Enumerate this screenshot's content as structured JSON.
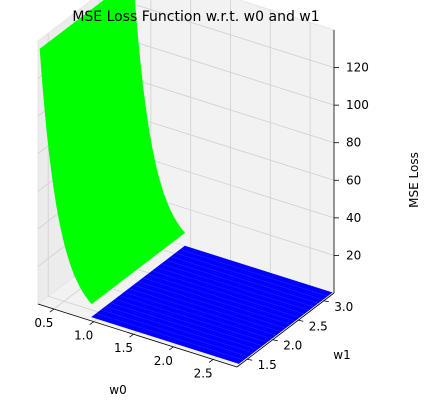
{
  "chart_data": {
    "type": "surface3d",
    "title": "MSE Loss Function w.r.t. w0 and w1",
    "xlabel": "w0",
    "ylabel": "w1",
    "zlabel": "MSE Loss",
    "xlim": [
      0.3,
      2.8
    ],
    "ylim": [
      1.3,
      3.2
    ],
    "zlim": [
      0,
      140
    ],
    "xticks": [
      "0.5",
      "1.0",
      "1.5",
      "2.0",
      "2.5"
    ],
    "yticks": [
      "1.5",
      "2.0",
      "2.5",
      "3.0"
    ],
    "zticks": [
      "20",
      "40",
      "60",
      "80",
      "100",
      "120"
    ],
    "surface": {
      "w0_start": 0.3,
      "w0_knee": 0.95,
      "w0_end": 2.8,
      "peak_loss": 135,
      "floor_loss": 1
    },
    "colors": {
      "steep_region": "#00ff00",
      "flat_region": "#0000ff",
      "pane": "#f2f2f2",
      "grid": "#d0d0d0"
    },
    "grid": true
  }
}
